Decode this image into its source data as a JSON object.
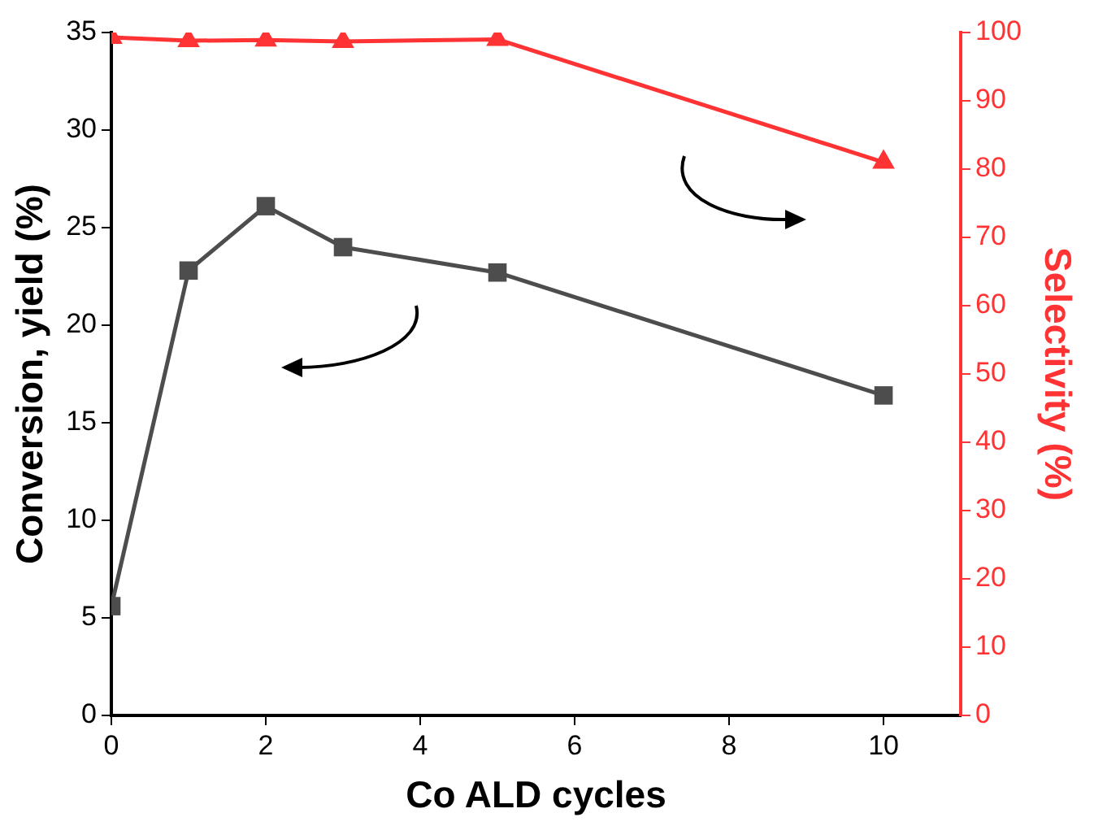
{
  "chart_data": {
    "type": "line",
    "xlabel": "Co ALD cycles",
    "ylabel": "Conversion, yield (%)",
    "y2label": "Selectivity (%)",
    "x": [
      0,
      1,
      2,
      3,
      5,
      10
    ],
    "series": [
      {
        "color": "#4d4d4d",
        "marker": "square",
        "values": [
          5.6,
          22.8,
          26.1,
          24.0,
          22.7,
          16.4
        ]
      },
      {
        "color": "#ff3333",
        "marker": "triangle",
        "axis": "y2",
        "values": [
          99.3,
          98.8,
          98.9,
          98.7,
          99.0,
          81
        ]
      }
    ],
    "xlim": [
      0,
      11
    ],
    "xticks": [
      0,
      2,
      4,
      6,
      8,
      10
    ],
    "ylim": [
      0,
      35
    ],
    "yticks": [
      0,
      5,
      10,
      15,
      20,
      25,
      30,
      35
    ],
    "y2lim": [
      0,
      100
    ],
    "y2ticks": [
      0,
      10,
      20,
      30,
      40,
      50,
      60,
      70,
      80,
      90,
      100
    ],
    "grid": false,
    "legend": false,
    "line_style": "solid"
  }
}
